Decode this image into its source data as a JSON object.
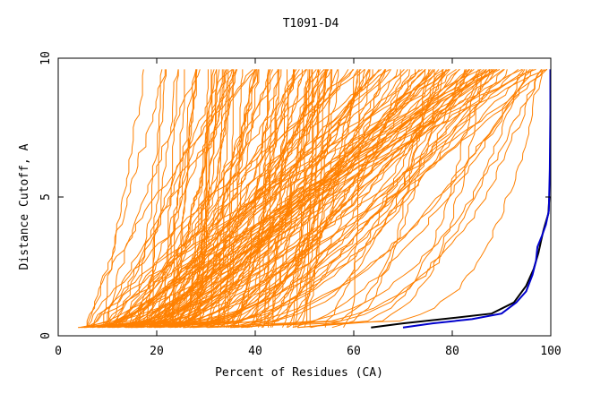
{
  "chart_data": {
    "type": "line",
    "title": "T1091-D4",
    "xlabel": "Percent of Residues (CA)",
    "ylabel": "Distance Cutoff, A",
    "xlim": [
      0,
      100
    ],
    "ylim": [
      0,
      10
    ],
    "x_ticks": [
      "0",
      "20",
      "40",
      "60",
      "80",
      "100"
    ],
    "y_ticks": [
      "0",
      "5",
      "10"
    ],
    "grid": false,
    "colors": {
      "models": "#ff8000",
      "black_model": "#000000",
      "blue_model": "#0000cc"
    },
    "highlight_series": [
      {
        "color": "black",
        "x": [
          63.5,
          70,
          78,
          88,
          92.5,
          95,
          96.5,
          97.5,
          98,
          98.5,
          99,
          99.5,
          99.7
        ],
        "y": [
          0.3,
          0.45,
          0.6,
          0.8,
          1.2,
          1.8,
          2.4,
          3.0,
          3.4,
          3.8,
          4.1,
          4.4,
          5.0
        ]
      },
      {
        "color": "blue",
        "x": [
          70,
          76,
          84,
          90,
          93,
          95,
          96.3,
          97,
          97.3,
          98.2,
          99,
          99.6,
          99.8,
          99.9,
          99.9
        ],
        "y": [
          0.3,
          0.45,
          0.6,
          0.8,
          1.2,
          1.6,
          2.2,
          2.7,
          3.2,
          3.6,
          4.0,
          4.5,
          6.0,
          8.0,
          9.6
        ]
      }
    ],
    "model_band_envelope": {
      "x_at_cutoff_0_3": [
        4,
        64
      ],
      "x_at_cutoff_9_6": [
        17,
        99.5
      ]
    }
  }
}
